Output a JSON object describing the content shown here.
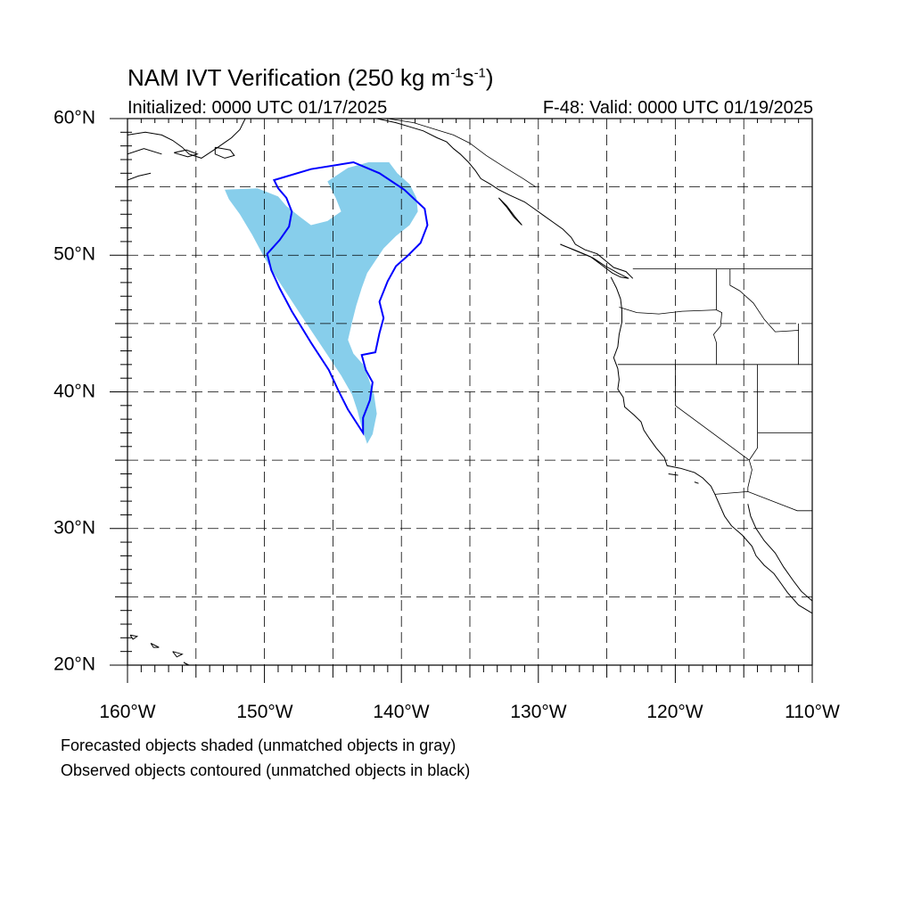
{
  "title": {
    "main": "NAM IVT Verification (250 kg m",
    "sup1": "-1",
    "mid": "s",
    "sup2": "-1",
    "end": ")"
  },
  "subtitle_left": "Initialized: 0000 UTC 01/17/2025",
  "subtitle_right": "F-48: Valid: 0000 UTC 01/19/2025",
  "lat_labels": [
    "20°N",
    "30°N",
    "40°N",
    "50°N",
    "60°N"
  ],
  "lon_labels": [
    "160°W",
    "150°W",
    "140°W",
    "130°W",
    "120°W",
    "110°W"
  ],
  "captions": [
    "Forecasted objects shaded (unmatched objects in gray)",
    "Observed objects contoured (unmatched objects in black)"
  ],
  "colors": {
    "forecast_fill": "#87ceeb",
    "observed_contour": "#0000ff",
    "coastline": "#000000",
    "grid": "#000000"
  },
  "map_data": {
    "extent": {
      "lon_min": -160,
      "lon_max": -110,
      "lat_min": 20,
      "lat_max": 60
    },
    "grid_spacing_deg": 5,
    "forecast_object": [
      [
        -152.9,
        54.8
      ],
      [
        -150.5,
        54.9
      ],
      [
        -149.0,
        54.3
      ],
      [
        -148.4,
        53.6
      ],
      [
        -147.4,
        52.8
      ],
      [
        -146.6,
        52.2
      ],
      [
        -145.4,
        52.5
      ],
      [
        -144.4,
        53.2
      ],
      [
        -144.8,
        54.2
      ],
      [
        -145.4,
        55.4
      ],
      [
        -143.9,
        56.4
      ],
      [
        -142.4,
        56.8
      ],
      [
        -140.9,
        56.8
      ],
      [
        -140.3,
        56.0
      ],
      [
        -139.4,
        55.2
      ],
      [
        -138.9,
        54.2
      ],
      [
        -138.8,
        53.2
      ],
      [
        -139.4,
        52.2
      ],
      [
        -140.4,
        51.4
      ],
      [
        -141.3,
        50.5
      ],
      [
        -141.9,
        49.6
      ],
      [
        -142.5,
        48.7
      ],
      [
        -142.9,
        47.6
      ],
      [
        -143.3,
        46.3
      ],
      [
        -143.6,
        45.1
      ],
      [
        -143.9,
        43.8
      ],
      [
        -143.5,
        42.8
      ],
      [
        -142.8,
        42.0
      ],
      [
        -142.4,
        41.0
      ],
      [
        -142.0,
        39.8
      ],
      [
        -141.8,
        38.4
      ],
      [
        -142.1,
        36.9
      ],
      [
        -142.5,
        36.2
      ],
      [
        -142.9,
        37.4
      ],
      [
        -143.2,
        38.6
      ],
      [
        -143.6,
        39.8
      ],
      [
        -144.4,
        41.2
      ],
      [
        -145.6,
        43.0
      ],
      [
        -147.0,
        45.1
      ],
      [
        -148.3,
        47.1
      ],
      [
        -149.4,
        48.8
      ],
      [
        -150.1,
        50.0
      ],
      [
        -150.9,
        51.5
      ],
      [
        -151.8,
        53.0
      ],
      [
        -152.6,
        54.1
      ]
    ],
    "observed_contour": [
      [
        -149.3,
        55.5
      ],
      [
        -146.6,
        56.3
      ],
      [
        -143.5,
        56.8
      ],
      [
        -141.6,
        56.0
      ],
      [
        -139.8,
        54.8
      ],
      [
        -138.3,
        53.4
      ],
      [
        -138.1,
        52.2
      ],
      [
        -138.6,
        50.9
      ],
      [
        -139.6,
        49.9
      ],
      [
        -140.4,
        49.2
      ],
      [
        -141.0,
        48.1
      ],
      [
        -141.6,
        46.6
      ],
      [
        -141.3,
        45.4
      ],
      [
        -141.6,
        44.3
      ],
      [
        -141.9,
        42.9
      ],
      [
        -142.9,
        42.7
      ],
      [
        -142.6,
        41.6
      ],
      [
        -142.1,
        40.7
      ],
      [
        -142.3,
        39.4
      ],
      [
        -142.8,
        38.1
      ],
      [
        -142.8,
        37.0
      ],
      [
        -143.9,
        38.7
      ],
      [
        -144.6,
        40.1
      ],
      [
        -145.3,
        41.6
      ],
      [
        -146.6,
        43.6
      ],
      [
        -148.0,
        45.9
      ],
      [
        -148.9,
        47.6
      ],
      [
        -149.5,
        48.9
      ],
      [
        -149.8,
        50.1
      ],
      [
        -148.9,
        51.1
      ],
      [
        -148.2,
        52.1
      ],
      [
        -148.0,
        53.2
      ],
      [
        -148.4,
        54.2
      ],
      [
        -149.0,
        54.9
      ]
    ],
    "coastlines": [
      [
        [
          -160,
          58.8
        ],
        [
          -158.7,
          59.0
        ],
        [
          -157.5,
          58.8
        ],
        [
          -156.7,
          58.4
        ],
        [
          -156.0,
          57.9
        ],
        [
          -155.5,
          57.4
        ],
        [
          -154.6,
          57.1
        ],
        [
          -153.4,
          57.9
        ],
        [
          -152.4,
          58.6
        ],
        [
          -151.8,
          59.2
        ],
        [
          -151.4,
          60.0
        ]
      ],
      [
        [
          -160,
          57.4
        ],
        [
          -158.8,
          57.8
        ],
        [
          -157.5,
          57.4
        ]
      ],
      [
        [
          -160,
          55.5
        ],
        [
          -159.2,
          55.8
        ],
        [
          -158.3,
          56.0
        ]
      ],
      [
        [
          -156.6,
          57.5
        ],
        [
          -155.7,
          57.7
        ],
        [
          -154.9,
          57.4
        ],
        [
          -155.6,
          57.2
        ],
        [
          -156.6,
          57.5
        ]
      ],
      [
        [
          -153.6,
          57.9
        ],
        [
          -152.5,
          57.7
        ],
        [
          -152.2,
          57.3
        ],
        [
          -152.9,
          57.1
        ],
        [
          -153.6,
          57.4
        ],
        [
          -153.6,
          57.9
        ]
      ],
      [
        [
          -141.8,
          60.0
        ],
        [
          -140.4,
          59.7
        ],
        [
          -139.4,
          59.4
        ],
        [
          -138.4,
          59.1
        ],
        [
          -137.4,
          58.6
        ],
        [
          -136.7,
          58.3
        ],
        [
          -136.2,
          57.8
        ],
        [
          -135.7,
          57.4
        ],
        [
          -135.1,
          56.8
        ],
        [
          -134.6,
          56.2
        ],
        [
          -134.2,
          55.6
        ],
        [
          -133.5,
          55.2
        ],
        [
          -132.9,
          54.8
        ],
        [
          -132.1,
          54.4
        ],
        [
          -131.0,
          53.9
        ],
        [
          -130.3,
          53.4
        ],
        [
          -129.6,
          52.9
        ],
        [
          -128.9,
          52.4
        ],
        [
          -128.2,
          51.9
        ],
        [
          -127.6,
          51.3
        ],
        [
          -127.3,
          50.8
        ],
        [
          -126.6,
          50.4
        ],
        [
          -125.7,
          50.1
        ],
        [
          -125.1,
          49.6
        ],
        [
          -124.5,
          49.1
        ],
        [
          -123.6,
          48.8
        ],
        [
          -123.1,
          48.3
        ]
      ],
      [
        [
          -132.9,
          54.2
        ],
        [
          -132.3,
          53.5
        ],
        [
          -131.8,
          52.8
        ],
        [
          -131.2,
          52.2
        ],
        [
          -131.7,
          52.8
        ],
        [
          -132.3,
          53.6
        ],
        [
          -132.9,
          54.2
        ]
      ],
      [
        [
          -128.4,
          50.8
        ],
        [
          -127.4,
          50.4
        ],
        [
          -126.2,
          49.9
        ],
        [
          -125.4,
          49.3
        ],
        [
          -124.6,
          48.7
        ],
        [
          -124.0,
          48.4
        ],
        [
          -123.4,
          48.3
        ],
        [
          -124.2,
          48.7
        ],
        [
          -125.1,
          49.2
        ],
        [
          -126.0,
          49.8
        ],
        [
          -127.2,
          50.3
        ],
        [
          -128.4,
          50.8
        ]
      ],
      [
        [
          -124.7,
          48.4
        ],
        [
          -124.3,
          47.6
        ],
        [
          -124.0,
          46.8
        ],
        [
          -123.9,
          46.0
        ],
        [
          -123.9,
          45.1
        ],
        [
          -124.1,
          44.2
        ],
        [
          -124.2,
          43.3
        ],
        [
          -124.5,
          42.5
        ],
        [
          -124.2,
          41.7
        ],
        [
          -124.1,
          40.9
        ],
        [
          -124.2,
          40.2
        ],
        [
          -123.8,
          39.6
        ],
        [
          -123.7,
          38.9
        ],
        [
          -123.0,
          38.3
        ],
        [
          -122.5,
          37.8
        ],
        [
          -122.3,
          37.2
        ],
        [
          -121.9,
          36.6
        ],
        [
          -121.4,
          35.9
        ],
        [
          -120.8,
          35.2
        ],
        [
          -120.6,
          34.6
        ],
        [
          -119.6,
          34.4
        ],
        [
          -118.6,
          34.1
        ],
        [
          -118.0,
          33.7
        ],
        [
          -117.4,
          33.1
        ],
        [
          -117.1,
          32.5
        ],
        [
          -116.8,
          31.8
        ],
        [
          -116.4,
          30.9
        ],
        [
          -115.9,
          30.2
        ],
        [
          -115.1,
          29.5
        ],
        [
          -114.4,
          28.7
        ],
        [
          -114.1,
          28.0
        ],
        [
          -113.5,
          27.3
        ],
        [
          -112.8,
          26.7
        ],
        [
          -112.3,
          26.0
        ],
        [
          -111.8,
          25.3
        ],
        [
          -111.0,
          24.4
        ],
        [
          -110.0,
          23.8
        ]
      ],
      [
        [
          -114.7,
          31.8
        ],
        [
          -114.5,
          30.9
        ],
        [
          -114.1,
          30.0
        ],
        [
          -113.5,
          29.1
        ],
        [
          -112.7,
          28.2
        ],
        [
          -112.1,
          27.2
        ],
        [
          -111.4,
          26.2
        ],
        [
          -110.8,
          25.4
        ],
        [
          -110.0,
          24.7
        ]
      ],
      [
        [
          -120.5,
          34.0
        ],
        [
          -119.8,
          33.9
        ]
      ],
      [
        [
          -118.6,
          33.4
        ],
        [
          -118.3,
          33.3
        ]
      ],
      [
        [
          -155.9,
          20.2
        ],
        [
          -155.1,
          19.7
        ],
        [
          -155.5,
          20.0
        ],
        [
          -155.9,
          20.2
        ]
      ],
      [
        [
          -156.7,
          21.0
        ],
        [
          -156.0,
          20.8
        ],
        [
          -156.4,
          20.6
        ],
        [
          -156.7,
          21.0
        ]
      ],
      [
        [
          -158.3,
          21.6
        ],
        [
          -157.7,
          21.3
        ],
        [
          -158.1,
          21.3
        ],
        [
          -158.3,
          21.6
        ]
      ],
      [
        [
          -159.8,
          22.2
        ],
        [
          -159.3,
          22.1
        ],
        [
          -159.6,
          21.9
        ],
        [
          -159.8,
          22.2
        ]
      ]
    ],
    "borders": [
      [
        [
          -141.0,
          60.0
        ],
        [
          -139.1,
          59.7
        ],
        [
          -137.5,
          59.2
        ],
        [
          -136.2,
          58.8
        ],
        [
          -135.0,
          58.2
        ],
        [
          -133.8,
          57.3
        ],
        [
          -132.4,
          56.4
        ],
        [
          -131.1,
          55.6
        ],
        [
          -130.2,
          55.0
        ]
      ],
      [
        [
          -123.1,
          49.0
        ],
        [
          -110.0,
          49.0
        ]
      ],
      [
        [
          -124.1,
          46.2
        ],
        [
          -122.8,
          45.8
        ],
        [
          -121.2,
          45.7
        ],
        [
          -119.5,
          45.9
        ],
        [
          -117.0,
          46.0
        ]
      ],
      [
        [
          -117.0,
          49.0
        ],
        [
          -117.0,
          46.0
        ],
        [
          -116.6,
          45.8
        ],
        [
          -116.7,
          44.8
        ],
        [
          -117.2,
          44.2
        ],
        [
          -117.0,
          43.6
        ],
        [
          -117.0,
          42.0
        ]
      ],
      [
        [
          -124.2,
          42.0
        ],
        [
          -111.0,
          42.0
        ]
      ],
      [
        [
          -120.0,
          42.0
        ],
        [
          -120.0,
          39.0
        ],
        [
          -114.6,
          35.0
        ]
      ],
      [
        [
          -114.0,
          42.0
        ],
        [
          -114.0,
          35.9
        ],
        [
          -114.6,
          35.0
        ],
        [
          -114.4,
          34.3
        ],
        [
          -114.7,
          33.0
        ],
        [
          -114.7,
          32.7
        ]
      ],
      [
        [
          -114.0,
          37.0
        ],
        [
          -110.0,
          37.0
        ]
      ],
      [
        [
          -117.1,
          32.5
        ],
        [
          -114.7,
          32.7
        ],
        [
          -111.1,
          31.3
        ],
        [
          -110.0,
          31.3
        ]
      ],
      [
        [
          -116.0,
          49.0
        ],
        [
          -116.0,
          47.8
        ],
        [
          -115.3,
          47.4
        ],
        [
          -114.3,
          46.5
        ],
        [
          -113.5,
          45.3
        ],
        [
          -112.7,
          44.4
        ],
        [
          -111.0,
          44.5
        ]
      ],
      [
        [
          -111.0,
          45.0
        ],
        [
          -111.0,
          42.0
        ],
        [
          -110.0,
          42.0
        ]
      ]
    ]
  }
}
